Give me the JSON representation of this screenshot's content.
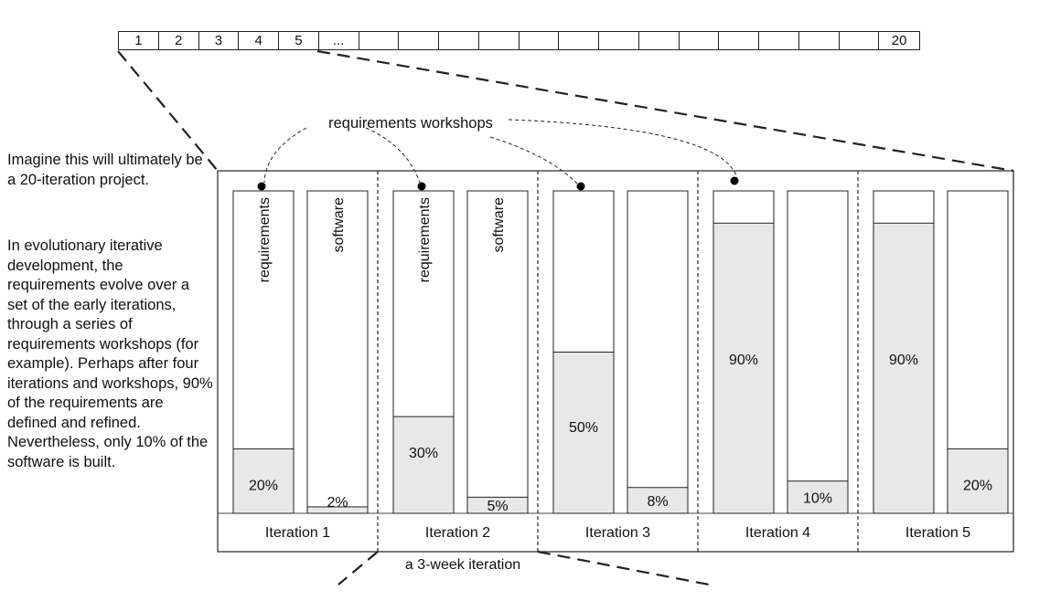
{
  "timeline": [
    "1",
    "2",
    "3",
    "4",
    "5",
    "...",
    "",
    "",
    "",
    "",
    "",
    "",
    "",
    "",
    "",
    "",
    "",
    "",
    "",
    "20"
  ],
  "side_text": {
    "intro": "Imagine this will ultimately be a 20-iteration project.",
    "explanation": "In evolutionary iterative development, the requirements evolve over a set of the early iterations, through a series of requirements workshops (for example). Perhaps after four iterations and workshops, 90% of the requirements are defined and refined. Nevertheless, only 10% of the software is built."
  },
  "annotation": "requirements workshops",
  "bar_labels": {
    "requirements": "requirements",
    "software": "software"
  },
  "iterations": [
    {
      "label": "Iteration 1",
      "requirements_pct": 20,
      "requirements_label": "20%",
      "software_pct": 2,
      "software_label": "2%",
      "workshop": true
    },
    {
      "label": "Iteration 2",
      "requirements_pct": 30,
      "requirements_label": "30%",
      "software_pct": 5,
      "software_label": "5%",
      "workshop": true
    },
    {
      "label": "Iteration 3",
      "requirements_pct": 50,
      "requirements_label": "50%",
      "software_pct": 8,
      "software_label": "8%",
      "workshop": true
    },
    {
      "label": "Iteration 4",
      "requirements_pct": 90,
      "requirements_label": "90%",
      "software_pct": 10,
      "software_label": "10%",
      "workshop": true
    },
    {
      "label": "Iteration 5",
      "requirements_pct": 90,
      "requirements_label": "90%",
      "software_pct": 20,
      "software_label": "20%",
      "workshop": false
    }
  ],
  "duration_note": "a 3-week iteration",
  "colors": {
    "fill": "#e8e8e8",
    "stroke": "#222222",
    "background": "#ffffff"
  }
}
